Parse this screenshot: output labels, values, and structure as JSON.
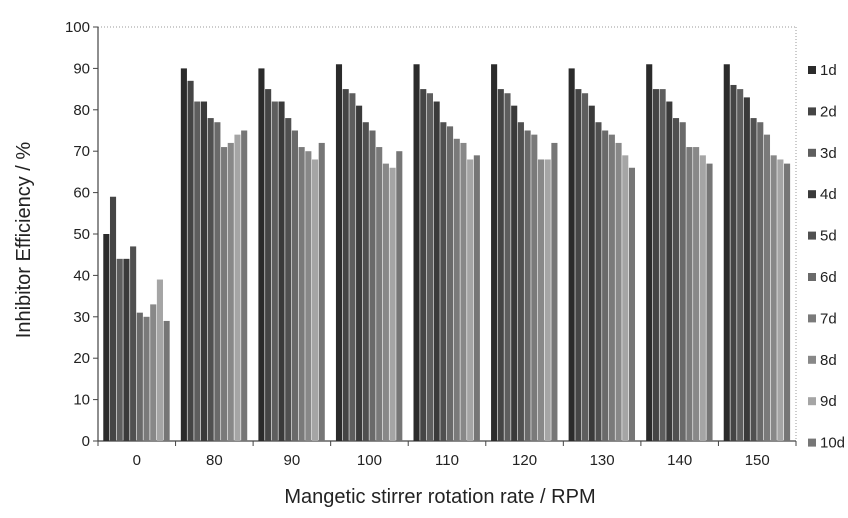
{
  "chart_data": {
    "type": "bar",
    "title": "",
    "xlabel": "Mangetic stirrer rotation rate / RPM",
    "ylabel": "Inhibitor Efficiency / %",
    "ylim": [
      0,
      100
    ],
    "yticks": [
      0,
      10,
      20,
      30,
      40,
      50,
      60,
      70,
      80,
      90,
      100
    ],
    "grid": false,
    "legend_position": "right",
    "categories": [
      "0",
      "80",
      "90",
      "100",
      "110",
      "120",
      "130",
      "140",
      "150"
    ],
    "series": [
      {
        "name": "1d",
        "color": "#2b2b2b",
        "values": [
          50,
          90,
          90,
          91,
          91,
          91,
          90,
          91,
          91
        ]
      },
      {
        "name": "2d",
        "color": "#454545",
        "values": [
          59,
          87,
          85,
          85,
          85,
          85,
          85,
          85,
          86
        ]
      },
      {
        "name": "3d",
        "color": "#5e5e5e",
        "values": [
          44,
          82,
          82,
          84,
          84,
          84,
          84,
          85,
          85
        ]
      },
      {
        "name": "4d",
        "color": "#3a3a3a",
        "values": [
          44,
          82,
          82,
          81,
          82,
          81,
          81,
          82,
          83
        ]
      },
      {
        "name": "5d",
        "color": "#505050",
        "values": [
          47,
          78,
          78,
          77,
          77,
          77,
          77,
          78,
          78
        ]
      },
      {
        "name": "6d",
        "color": "#6a6a6a",
        "values": [
          31,
          77,
          75,
          75,
          76,
          75,
          75,
          77,
          77
        ]
      },
      {
        "name": "7d",
        "color": "#7a7a7a",
        "values": [
          30,
          71,
          71,
          71,
          73,
          74,
          74,
          71,
          74
        ]
      },
      {
        "name": "8d",
        "color": "#888888",
        "values": [
          33,
          72,
          70,
          67,
          72,
          68,
          72,
          71,
          69
        ]
      },
      {
        "name": "9d",
        "color": "#a5a5a5",
        "values": [
          39,
          74,
          68,
          66,
          68,
          68,
          69,
          69,
          68
        ]
      },
      {
        "name": "10d",
        "color": "#767676",
        "values": [
          29,
          75,
          72,
          70,
          69,
          72,
          66,
          67,
          67
        ]
      }
    ]
  }
}
